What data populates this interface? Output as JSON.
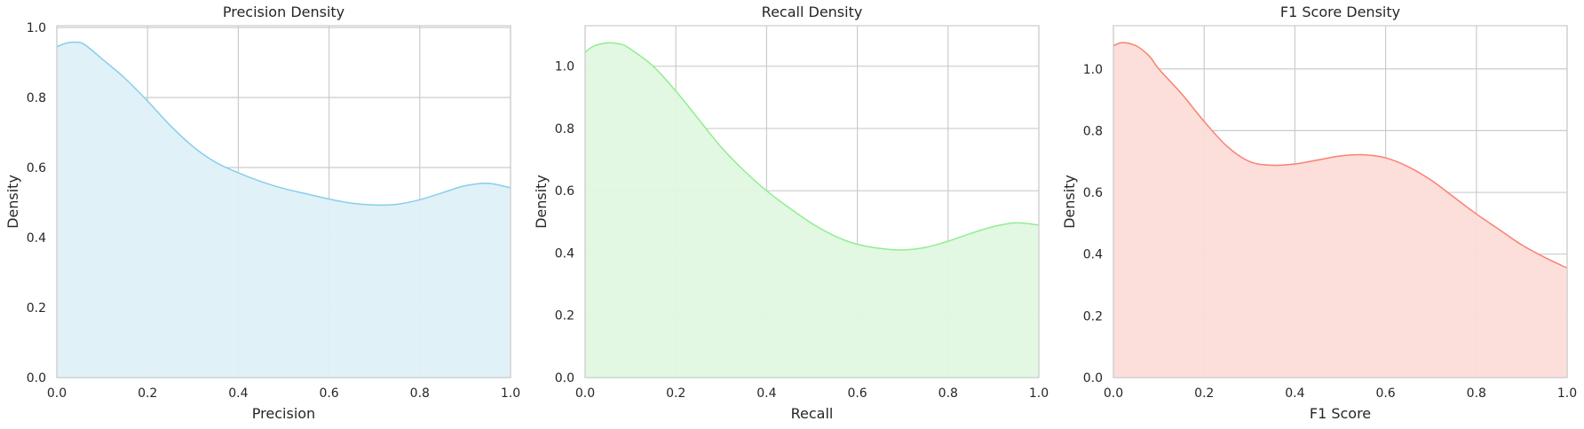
{
  "chart_data": [
    {
      "type": "area",
      "title": "Precision Density",
      "xlabel": "Precision",
      "ylabel": "Density",
      "xlim": [
        0,
        1
      ],
      "ylim": [
        0,
        1.005
      ],
      "xticks": [
        "0.0",
        "0.2",
        "0.4",
        "0.6",
        "0.8",
        "1.0"
      ],
      "yticks": [
        "0.0",
        "0.2",
        "0.4",
        "0.6",
        "0.8",
        "1.0"
      ],
      "grid": true,
      "color": "#87ceeb",
      "fill_color": "#dff0f8",
      "series": [
        {
          "x": [
            0.0,
            0.02,
            0.04,
            0.06,
            0.1,
            0.15,
            0.2,
            0.25,
            0.3,
            0.35,
            0.4,
            0.45,
            0.5,
            0.55,
            0.6,
            0.65,
            0.7,
            0.75,
            0.8,
            0.85,
            0.9,
            0.95,
            1.0
          ],
          "y": [
            0.945,
            0.955,
            0.958,
            0.952,
            0.91,
            0.855,
            0.79,
            0.72,
            0.66,
            0.615,
            0.585,
            0.56,
            0.54,
            0.525,
            0.51,
            0.498,
            0.493,
            0.495,
            0.508,
            0.528,
            0.548,
            0.555,
            0.542
          ]
        }
      ]
    },
    {
      "type": "area",
      "title": "Recall Density",
      "xlabel": "Recall",
      "ylabel": "Density",
      "xlim": [
        0,
        1
      ],
      "ylim": [
        0,
        1.13
      ],
      "xticks": [
        "0.0",
        "0.2",
        "0.4",
        "0.6",
        "0.8",
        "1.0"
      ],
      "yticks": [
        "0.0",
        "0.2",
        "0.4",
        "0.6",
        "0.8",
        "1.0"
      ],
      "grid": true,
      "color": "#90ee90",
      "fill_color": "#e0f8e0",
      "series": [
        {
          "x": [
            0.0,
            0.02,
            0.05,
            0.08,
            0.1,
            0.15,
            0.2,
            0.25,
            0.3,
            0.35,
            0.4,
            0.45,
            0.5,
            0.55,
            0.6,
            0.65,
            0.7,
            0.75,
            0.8,
            0.85,
            0.9,
            0.95,
            1.0
          ],
          "y": [
            1.045,
            1.065,
            1.075,
            1.07,
            1.055,
            1.0,
            0.92,
            0.83,
            0.74,
            0.665,
            0.6,
            0.545,
            0.495,
            0.455,
            0.428,
            0.415,
            0.41,
            0.418,
            0.438,
            0.463,
            0.485,
            0.497,
            0.49
          ]
        }
      ]
    },
    {
      "type": "area",
      "title": "F1 Score Density",
      "xlabel": "F1 Score",
      "ylabel": "Density",
      "xlim": [
        0,
        1
      ],
      "ylim": [
        0,
        1.14
      ],
      "xticks": [
        "0.0",
        "0.2",
        "0.4",
        "0.6",
        "0.8",
        "1.0"
      ],
      "yticks": [
        "0.0",
        "0.2",
        "0.4",
        "0.6",
        "0.8",
        "1.0"
      ],
      "grid": true,
      "color": "#fa8072",
      "fill_color": "#fcdcd8",
      "series": [
        {
          "x": [
            0.0,
            0.02,
            0.05,
            0.08,
            0.1,
            0.15,
            0.2,
            0.25,
            0.3,
            0.35,
            0.4,
            0.45,
            0.5,
            0.55,
            0.6,
            0.65,
            0.7,
            0.75,
            0.8,
            0.85,
            0.9,
            0.95,
            1.0
          ],
          "y": [
            1.075,
            1.085,
            1.075,
            1.04,
            1.0,
            0.92,
            0.83,
            0.75,
            0.7,
            0.688,
            0.692,
            0.705,
            0.718,
            0.722,
            0.712,
            0.683,
            0.64,
            0.585,
            0.53,
            0.48,
            0.43,
            0.39,
            0.355
          ]
        }
      ]
    }
  ]
}
